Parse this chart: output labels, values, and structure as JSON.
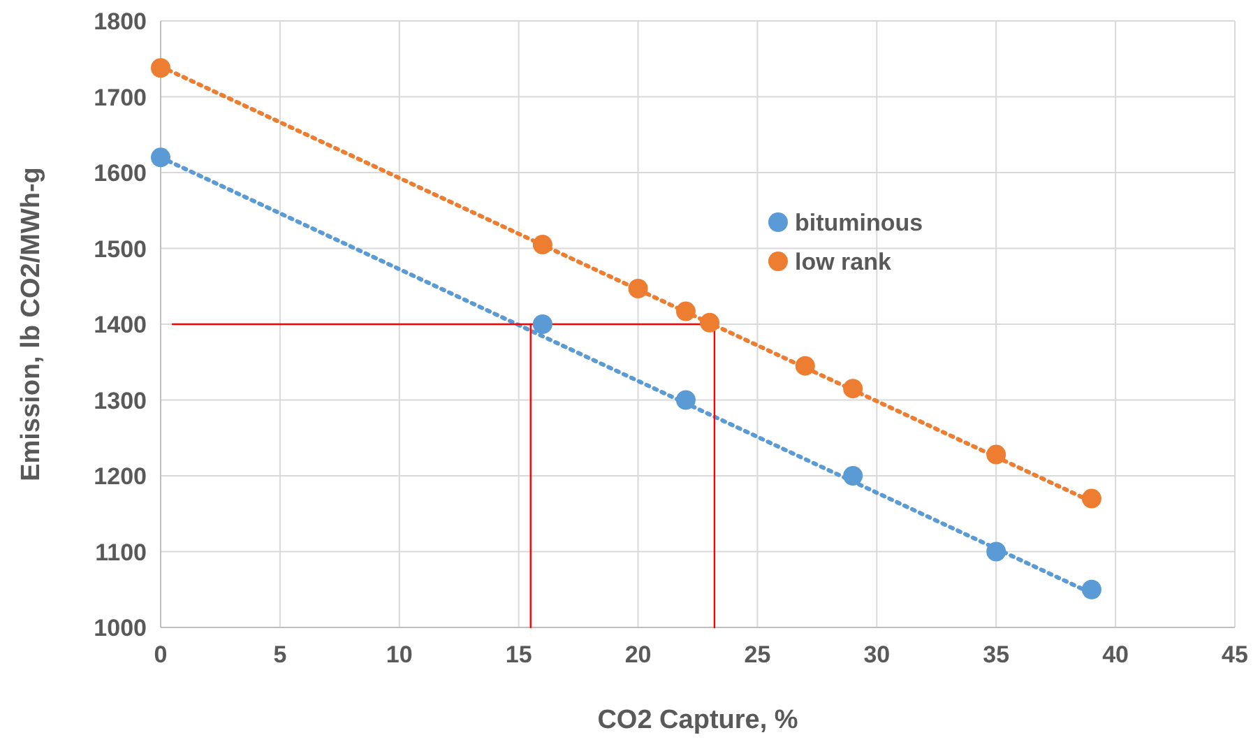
{
  "chart_data": {
    "type": "scatter",
    "xlabel": "CO2 Capture, %",
    "ylabel": "Emission, lb CO2/MWh-g",
    "xlim": [
      0,
      45
    ],
    "xticks": [
      0,
      5,
      10,
      15,
      20,
      25,
      30,
      35,
      40,
      45
    ],
    "ylim": [
      1000,
      1800
    ],
    "yticks": [
      1000,
      1100,
      1200,
      1300,
      1400,
      1500,
      1600,
      1700,
      1800
    ],
    "grid": true,
    "legend": "right",
    "marker": "circle",
    "series": [
      {
        "type": "line",
        "color": "#5b9bd5",
        "line_style": "dotted",
        "marker": "none",
        "x": [
          0,
          39
        ],
        "values": [
          1620,
          1045
        ]
      },
      {
        "type": "line",
        "color": "#ed7d31",
        "line_style": "dotted",
        "marker": "none",
        "x": [
          0,
          39
        ],
        "values": [
          1740,
          1166
        ]
      },
      {
        "type": "line",
        "color": "#ff0000",
        "line_style": "solid",
        "marker": "none",
        "x": [
          0.5,
          23.2
        ],
        "values": [
          1400,
          1400
        ]
      },
      {
        "type": "line",
        "color": "#ff0000",
        "line_style": "solid",
        "marker": "none",
        "x": [
          15.5,
          15.5
        ],
        "values": [
          1000,
          1400
        ]
      },
      {
        "type": "line",
        "color": "#ff0000",
        "line_style": "solid",
        "marker": "none",
        "x": [
          23.2,
          23.2
        ],
        "values": [
          1000,
          1400
        ]
      },
      {
        "name": "bituminous",
        "color": "#5b9bd5",
        "x": [
          0,
          16,
          22,
          29,
          35,
          39
        ],
        "values": [
          1620,
          1400,
          1300,
          1200,
          1100,
          1050
        ]
      },
      {
        "name": "low rank",
        "color": "#ed7d31",
        "x": [
          0,
          16,
          20,
          22,
          23,
          27,
          29,
          35,
          39
        ],
        "values": [
          1738,
          1505,
          1447,
          1417,
          1402,
          1345,
          1315,
          1228,
          1170
        ]
      }
    ]
  }
}
